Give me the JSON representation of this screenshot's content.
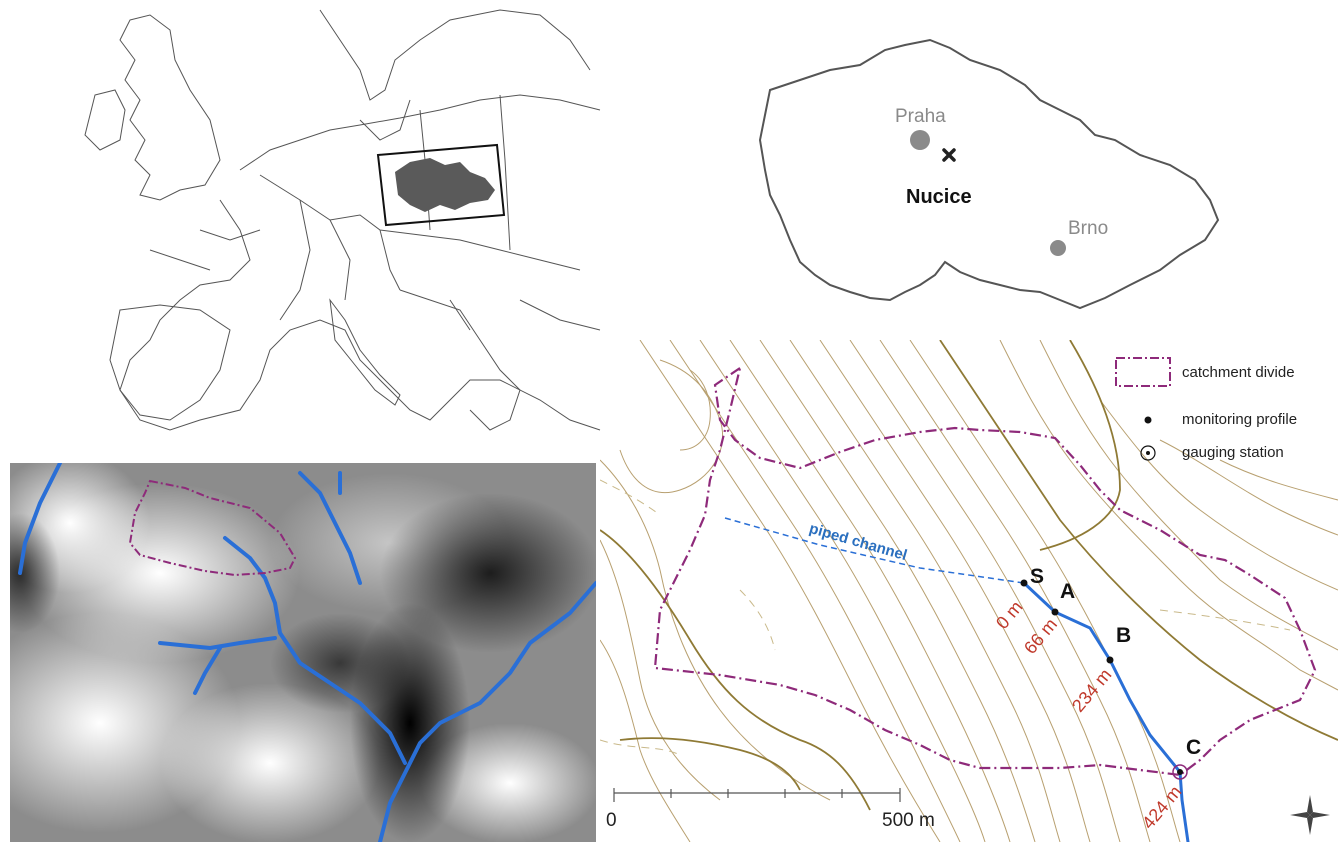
{
  "czech_map": {
    "cities": [
      {
        "name": "Praha"
      },
      {
        "name": "Brno"
      }
    ],
    "site": {
      "name": "Nucice",
      "marker": "cross-icon"
    }
  },
  "catchment_map": {
    "legend": [
      {
        "label": "catchment divide",
        "symbol": "dash-dot-box",
        "color": "#8e2a7a"
      },
      {
        "label": "monitoring profile",
        "symbol": "black-dot"
      },
      {
        "label": "gauging station",
        "symbol": "circled-dot"
      }
    ],
    "piped_channel_label": "piped channel",
    "points": [
      {
        "id": "S",
        "distance": "0 m"
      },
      {
        "id": "A",
        "distance": "66 m"
      },
      {
        "id": "B",
        "distance": "234 m"
      },
      {
        "id": "C",
        "distance": "424 m"
      }
    ],
    "scale_bar": {
      "start": "0",
      "end": "500 m"
    }
  },
  "colors": {
    "contour": "#b8a070",
    "contour_index": "#8f7a35",
    "stream": "#2a6fd6",
    "divide": "#8e2a7a",
    "distance_label": "#c0392b"
  }
}
